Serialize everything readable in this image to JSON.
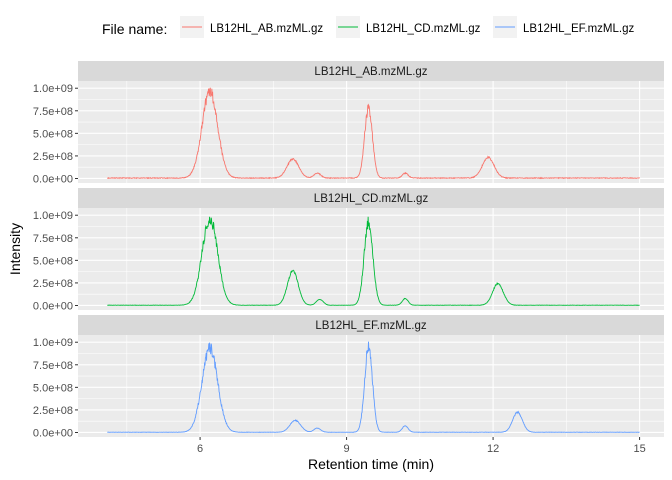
{
  "chart_data": {
    "type": "line",
    "xlabel": "Retention time (min)",
    "ylabel": "Intensity",
    "xlim": [
      3.5,
      15.5
    ],
    "ylim": [
      -50000000,
      1080000000
    ],
    "x_ticks": [
      6,
      9,
      12,
      15
    ],
    "y_ticks": [
      0,
      250000000,
      500000000,
      750000000,
      1000000000
    ],
    "y_tick_labels": [
      "0.0e+00",
      "2.5e+08",
      "5.0e+08",
      "7.5e+08",
      "1.0e+09"
    ],
    "x_range": [
      4.1,
      15.0
    ],
    "legend": {
      "title": "File name:",
      "position": "top",
      "entries": [
        "LB12HL_AB.mzML.gz",
        "LB12HL_CD.mzML.gz",
        "LB12HL_EF.mzML.gz"
      ]
    },
    "grid": true,
    "series": [
      {
        "name": "LB12HL_AB.mzML.gz",
        "strip": "LB12HL_AB.mzML.gz",
        "color": "#F8766D",
        "baseline": 5000000,
        "noise": 8000000,
        "peaks": [
          {
            "rt": 6.2,
            "height": 960000000,
            "width": 0.16
          },
          {
            "rt": 7.9,
            "height": 210000000,
            "width": 0.12
          },
          {
            "rt": 8.4,
            "height": 55000000,
            "width": 0.07
          },
          {
            "rt": 9.45,
            "height": 780000000,
            "width": 0.08
          },
          {
            "rt": 10.2,
            "height": 55000000,
            "width": 0.06
          },
          {
            "rt": 11.9,
            "height": 230000000,
            "width": 0.12
          }
        ]
      },
      {
        "name": "LB12HL_CD.mzML.gz",
        "strip": "LB12HL_CD.mzML.gz",
        "color": "#00BA38",
        "baseline": 3000000,
        "noise": 3000000,
        "peaks": [
          {
            "rt": 6.2,
            "height": 960000000,
            "width": 0.16
          },
          {
            "rt": 7.9,
            "height": 380000000,
            "width": 0.11
          },
          {
            "rt": 8.45,
            "height": 65000000,
            "width": 0.07
          },
          {
            "rt": 9.45,
            "height": 920000000,
            "width": 0.09
          },
          {
            "rt": 10.2,
            "height": 75000000,
            "width": 0.06
          },
          {
            "rt": 12.1,
            "height": 240000000,
            "width": 0.11
          }
        ]
      },
      {
        "name": "LB12HL_EF.mzML.gz",
        "strip": "LB12HL_EF.mzML.gz",
        "color": "#619CFF",
        "baseline": 3000000,
        "noise": 3000000,
        "peaks": [
          {
            "rt": 6.2,
            "height": 930000000,
            "width": 0.16
          },
          {
            "rt": 7.95,
            "height": 130000000,
            "width": 0.11
          },
          {
            "rt": 8.4,
            "height": 45000000,
            "width": 0.07
          },
          {
            "rt": 9.45,
            "height": 950000000,
            "width": 0.08
          },
          {
            "rt": 10.2,
            "height": 70000000,
            "width": 0.06
          },
          {
            "rt": 12.5,
            "height": 220000000,
            "width": 0.1
          }
        ]
      }
    ]
  }
}
